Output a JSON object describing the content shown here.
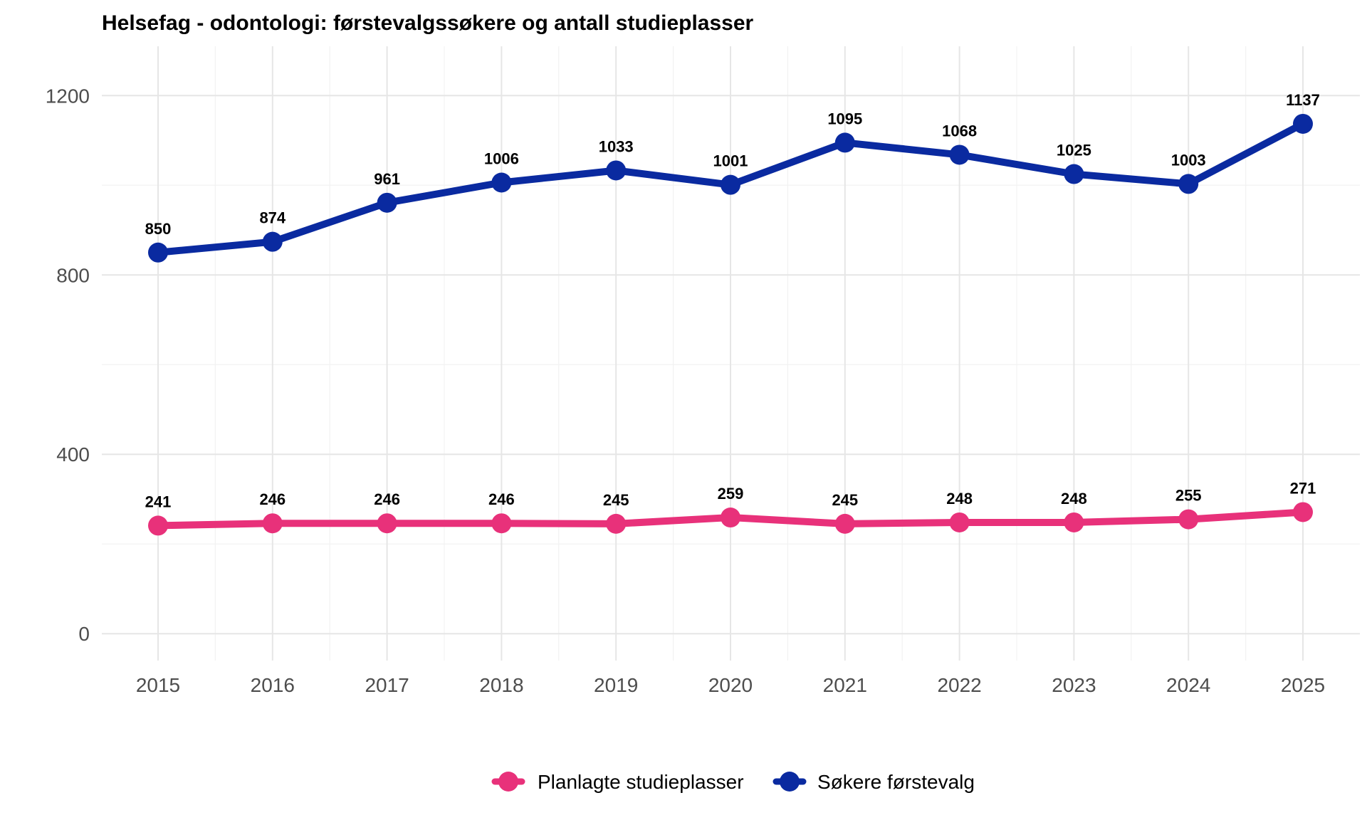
{
  "chart_data": {
    "type": "line",
    "title": "Helsefag - odontologi: førstevalgssøkere og antall studieplasser",
    "xlabel": "",
    "ylabel": "",
    "x": [
      "2015",
      "2016",
      "2017",
      "2018",
      "2019",
      "2020",
      "2021",
      "2022",
      "2023",
      "2024",
      "2025"
    ],
    "y_ticks": [
      "0",
      "400",
      "800",
      "1200"
    ],
    "ylim": [
      -60,
      1310
    ],
    "grid": true,
    "legend_position": "bottom",
    "series": [
      {
        "name": "Søkere førstevalg",
        "color": "#0a2aa0",
        "values": [
          850,
          874,
          961,
          1006,
          1033,
          1001,
          1095,
          1068,
          1025,
          1003,
          1137
        ],
        "labels": [
          "850",
          "874",
          "961",
          "1006",
          "1033",
          "1001",
          "1095",
          "1068",
          "1025",
          "1003",
          "1137"
        ]
      },
      {
        "name": "Planlagte studieplasser",
        "color": "#e8317a",
        "values": [
          241,
          246,
          246,
          246,
          245,
          259,
          245,
          248,
          248,
          255,
          271
        ],
        "labels": [
          "241",
          "246",
          "246",
          "246",
          "245",
          "259",
          "245",
          "248",
          "248",
          "255",
          "271"
        ]
      }
    ],
    "legend": [
      {
        "label": "Planlagte studieplasser",
        "color": "#e8317a"
      },
      {
        "label": "Søkere førstevalg",
        "color": "#0a2aa0"
      }
    ]
  }
}
